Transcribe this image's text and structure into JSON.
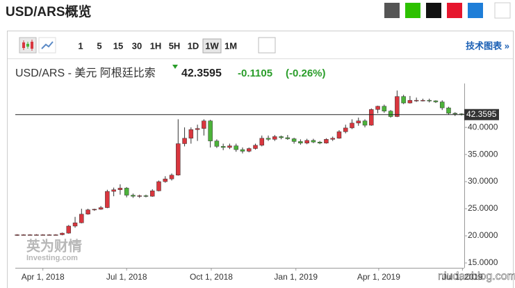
{
  "header": {
    "title": "USD/ARS概览"
  },
  "toolbar": {
    "intervals": [
      "1",
      "5",
      "15",
      "30",
      "1H",
      "5H",
      "1D",
      "1W",
      "1M"
    ],
    "selected_index": 7,
    "link": "技术图表 »"
  },
  "quote": {
    "name": "USD/ARS - 美元 阿根廷比索",
    "change": "-0.1105",
    "change_pct": "(-0.26%)"
  },
  "watermarks": [
    "英为财情",
    "Investing.com",
    "niudaoblog.com"
  ],
  "chart_data": {
    "type": "candlestick",
    "up_color": "#d9363e",
    "down_color": "#4cb33a",
    "last_price": 42.3595,
    "x": [
      "2018-03-04",
      "2018-03-11",
      "2018-03-18",
      "2018-03-25",
      "2018-04-01",
      "2018-04-08",
      "2018-04-15",
      "2018-04-22",
      "2018-04-29",
      "2018-05-06",
      "2018-05-13",
      "2018-05-20",
      "2018-05-27",
      "2018-06-03",
      "2018-06-10",
      "2018-06-17",
      "2018-06-24",
      "2018-07-01",
      "2018-07-08",
      "2018-07-15",
      "2018-07-22",
      "2018-07-29",
      "2018-08-05",
      "2018-08-12",
      "2018-08-19",
      "2018-08-26",
      "2018-09-02",
      "2018-09-09",
      "2018-09-16",
      "2018-09-23",
      "2018-09-30",
      "2018-10-07",
      "2018-10-14",
      "2018-10-21",
      "2018-10-28",
      "2018-11-04",
      "2018-11-11",
      "2018-11-18",
      "2018-11-25",
      "2018-12-02",
      "2018-12-09",
      "2018-12-16",
      "2018-12-23",
      "2018-12-30",
      "2019-01-06",
      "2019-01-13",
      "2019-01-20",
      "2019-01-27",
      "2019-02-03",
      "2019-02-10",
      "2019-02-17",
      "2019-02-24",
      "2019-03-03",
      "2019-03-10",
      "2019-03-17",
      "2019-03-24",
      "2019-03-31",
      "2019-04-07",
      "2019-04-14",
      "2019-04-21",
      "2019-04-28",
      "2019-05-05",
      "2019-05-12",
      "2019-05-19",
      "2019-05-26",
      "2019-06-02",
      "2019-06-09",
      "2019-06-16",
      "2019-06-23",
      "2019-06-30"
    ],
    "open": [
      20.1,
      20.2,
      20.2,
      20.2,
      20.2,
      20.2,
      20.2,
      20.2,
      20.5,
      21.8,
      22.4,
      24.0,
      24.8,
      24.9,
      25.2,
      28.2,
      28.5,
      28.8,
      27.5,
      27.3,
      27.4,
      27.3,
      28.3,
      30.0,
      30.5,
      31.2,
      37.0,
      38.0,
      39.6,
      39.8,
      41.2,
      37.5,
      36.5,
      36.3,
      36.6,
      35.9,
      35.6,
      36.1,
      36.7,
      38.0,
      37.8,
      38.3,
      38.1,
      37.9,
      37.4,
      37.1,
      37.6,
      37.3,
      37.1,
      37.8,
      38.0,
      39.2,
      39.9,
      40.8,
      41.2,
      40.4,
      43.3,
      43.9,
      43.0,
      42.0,
      45.7,
      44.5,
      45.0,
      45.0,
      45.0,
      44.9,
      44.7,
      43.6,
      42.6,
      42.5
    ],
    "high": [
      20.3,
      20.3,
      20.3,
      20.3,
      20.3,
      20.3,
      20.3,
      20.6,
      22.0,
      23.5,
      25.0,
      25.0,
      25.0,
      25.5,
      28.5,
      28.9,
      29.5,
      29.0,
      27.8,
      27.6,
      27.6,
      28.6,
      30.2,
      31.0,
      31.5,
      41.5,
      40.0,
      40.0,
      40.5,
      41.5,
      41.4,
      37.8,
      37.0,
      37.0,
      37.0,
      36.3,
      36.3,
      37.0,
      38.5,
      38.5,
      38.6,
      38.5,
      38.6,
      38.1,
      37.8,
      37.9,
      37.9,
      37.5,
      38.0,
      38.3,
      39.5,
      40.5,
      41.5,
      41.8,
      41.5,
      43.5,
      44.0,
      44.2,
      43.2,
      46.8,
      46.0,
      45.8,
      45.5,
      45.3,
      45.3,
      45.0,
      45.0,
      43.8,
      42.8,
      42.6
    ],
    "low": [
      20.0,
      20.1,
      20.1,
      20.1,
      20.1,
      20.1,
      20.1,
      20.1,
      20.4,
      21.5,
      22.3,
      23.9,
      24.6,
      24.8,
      25.1,
      27.3,
      27.6,
      27.1,
      27.0,
      27.0,
      27.1,
      27.2,
      28.2,
      29.8,
      30.2,
      31.1,
      36.5,
      37.0,
      37.5,
      38.5,
      36.3,
      36.2,
      35.8,
      36.0,
      35.5,
      35.2,
      35.4,
      35.9,
      36.5,
      37.5,
      37.5,
      37.8,
      37.7,
      37.0,
      36.8,
      36.9,
      37.1,
      36.9,
      37.0,
      37.5,
      37.9,
      38.9,
      39.7,
      40.3,
      40.0,
      40.3,
      42.6,
      42.7,
      41.8,
      41.9,
      44.3,
      44.4,
      44.7,
      44.8,
      44.6,
      44.5,
      43.2,
      42.4,
      42.1,
      42.2
    ],
    "close": [
      20.2,
      20.2,
      20.2,
      20.2,
      20.2,
      20.2,
      20.2,
      20.5,
      21.8,
      22.4,
      24.0,
      24.8,
      24.9,
      25.2,
      28.2,
      28.5,
      28.8,
      27.5,
      27.3,
      27.4,
      27.3,
      28.3,
      30.0,
      30.5,
      31.2,
      37.0,
      38.0,
      39.6,
      39.8,
      41.2,
      37.5,
      36.5,
      36.3,
      36.6,
      35.9,
      35.6,
      36.1,
      36.7,
      38.0,
      37.8,
      38.3,
      38.1,
      37.9,
      37.4,
      37.1,
      37.6,
      37.3,
      37.1,
      37.8,
      38.0,
      39.2,
      39.9,
      40.8,
      41.2,
      40.4,
      43.3,
      43.9,
      43.0,
      42.0,
      45.7,
      44.5,
      45.0,
      45.0,
      45.0,
      44.9,
      44.7,
      43.6,
      42.6,
      42.5,
      42.3595
    ],
    "xlim": [
      "2018-03-02",
      "2019-07-03"
    ],
    "xticks": [
      {
        "value": "2018-04-01",
        "label": "Apr 1, 2018"
      },
      {
        "value": "2018-07-01",
        "label": "Jul 1, 2018"
      },
      {
        "value": "2018-10-01",
        "label": "Oct 1, 2018"
      },
      {
        "value": "2019-01-01",
        "label": "Jan 1, 2019"
      },
      {
        "value": "2019-04-01",
        "label": "Apr 1, 2019"
      },
      {
        "value": "2019-07-01",
        "label": "Jul 1, 2019"
      }
    ],
    "ylim": [
      14.1,
      48.1
    ],
    "yticks": [
      {
        "value": 15,
        "label": "15.0000"
      },
      {
        "value": 20,
        "label": "20.0000"
      },
      {
        "value": 25,
        "label": "25.0000"
      },
      {
        "value": 30,
        "label": "30.0000"
      },
      {
        "value": 35,
        "label": "35.0000"
      },
      {
        "value": 40,
        "label": "40.0000"
      }
    ],
    "grid": false
  }
}
